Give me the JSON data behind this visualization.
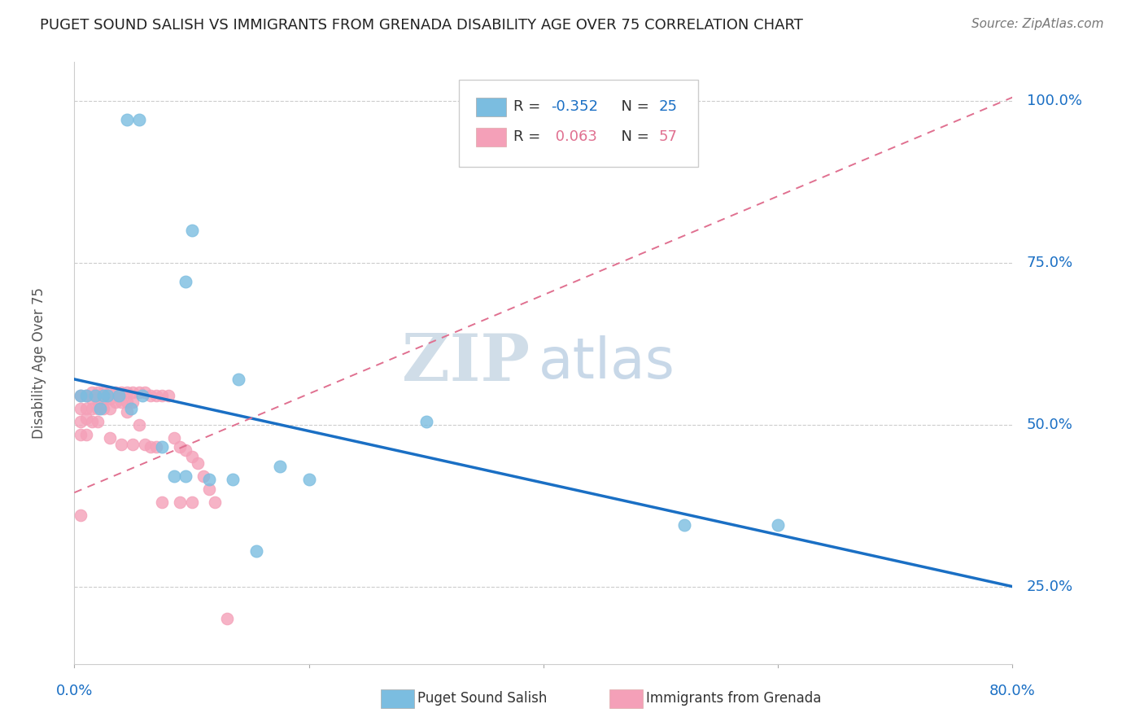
{
  "title": "PUGET SOUND SALISH VS IMMIGRANTS FROM GRENADA DISABILITY AGE OVER 75 CORRELATION CHART",
  "source": "Source: ZipAtlas.com",
  "ylabel": "Disability Age Over 75",
  "ytick_labels": [
    "25.0%",
    "50.0%",
    "75.0%",
    "100.0%"
  ],
  "ytick_values": [
    0.25,
    0.5,
    0.75,
    1.0
  ],
  "xlim": [
    0.0,
    0.8
  ],
  "ylim": [
    0.13,
    1.06
  ],
  "blue_R": -0.352,
  "blue_N": 25,
  "pink_R": 0.063,
  "pink_N": 57,
  "blue_scatter_x": [
    0.045,
    0.055,
    0.1,
    0.095,
    0.3,
    0.52,
    0.6,
    0.14,
    0.175,
    0.2,
    0.005,
    0.01,
    0.018,
    0.022,
    0.028,
    0.038,
    0.048,
    0.058,
    0.075,
    0.085,
    0.095,
    0.115,
    0.135,
    0.155,
    0.025
  ],
  "blue_scatter_y": [
    0.97,
    0.97,
    0.8,
    0.72,
    0.505,
    0.345,
    0.345,
    0.57,
    0.435,
    0.415,
    0.545,
    0.545,
    0.545,
    0.525,
    0.545,
    0.545,
    0.525,
    0.545,
    0.465,
    0.42,
    0.42,
    0.415,
    0.415,
    0.305,
    0.545
  ],
  "pink_scatter_x": [
    0.005,
    0.005,
    0.005,
    0.005,
    0.005,
    0.01,
    0.01,
    0.01,
    0.01,
    0.015,
    0.015,
    0.015,
    0.015,
    0.02,
    0.02,
    0.02,
    0.02,
    0.025,
    0.025,
    0.025,
    0.03,
    0.03,
    0.03,
    0.03,
    0.035,
    0.035,
    0.04,
    0.04,
    0.04,
    0.045,
    0.045,
    0.045,
    0.05,
    0.05,
    0.05,
    0.055,
    0.055,
    0.06,
    0.06,
    0.065,
    0.065,
    0.07,
    0.07,
    0.075,
    0.075,
    0.08,
    0.085,
    0.09,
    0.09,
    0.095,
    0.1,
    0.1,
    0.105,
    0.11,
    0.115,
    0.12,
    0.13
  ],
  "pink_scatter_y": [
    0.545,
    0.525,
    0.505,
    0.485,
    0.36,
    0.545,
    0.525,
    0.51,
    0.485,
    0.55,
    0.54,
    0.525,
    0.505,
    0.55,
    0.54,
    0.525,
    0.505,
    0.55,
    0.54,
    0.525,
    0.55,
    0.54,
    0.525,
    0.48,
    0.55,
    0.535,
    0.55,
    0.535,
    0.47,
    0.55,
    0.535,
    0.52,
    0.55,
    0.535,
    0.47,
    0.55,
    0.5,
    0.55,
    0.47,
    0.545,
    0.465,
    0.545,
    0.465,
    0.545,
    0.38,
    0.545,
    0.48,
    0.465,
    0.38,
    0.46,
    0.45,
    0.38,
    0.44,
    0.42,
    0.4,
    0.38,
    0.2
  ],
  "blue_line_x": [
    0.0,
    0.8
  ],
  "blue_line_y": [
    0.57,
    0.25
  ],
  "pink_line_x": [
    0.0,
    0.8
  ],
  "pink_line_y": [
    0.395,
    1.005
  ],
  "blue_color": "#7bbde0",
  "pink_color": "#f4a0b8",
  "blue_line_color": "#1a6fc4",
  "pink_line_color": "#e07090",
  "watermark_ZIP": "ZIP",
  "watermark_atlas": "atlas",
  "background_color": "#ffffff"
}
